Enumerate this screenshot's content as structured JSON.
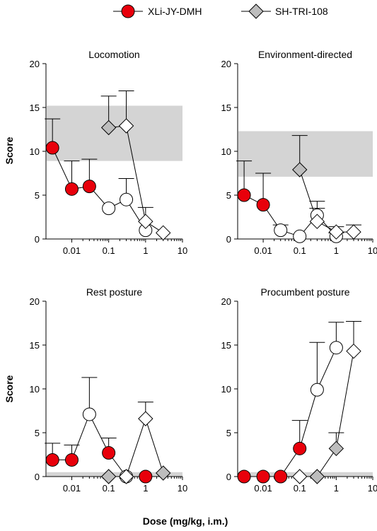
{
  "legend": {
    "entries": [
      {
        "label": "XLi-JY-DMH",
        "marker": "circle",
        "fill": "#e8000b"
      },
      {
        "label": "SH-TRI-108",
        "marker": "diamond",
        "fill": "#bdbdbd"
      }
    ]
  },
  "ylabel": "Score",
  "xlabel": "Dose (mg/kg, i.m.)",
  "colors": {
    "red_fill": "#e8000b",
    "gray_fill": "#bdbdbd",
    "open_fill": "#ffffff",
    "band": "#d4d4d4"
  },
  "chart_data": [
    {
      "type": "scatter",
      "title": "Locomotion",
      "xscale": "log",
      "xlim": [
        0.002,
        10
      ],
      "ylim": [
        0,
        20
      ],
      "xticks": [
        0.01,
        0.1,
        1,
        10
      ],
      "yticks": [
        0,
        5,
        10,
        15,
        20
      ],
      "band": [
        8.9,
        15.2
      ],
      "series": [
        {
          "name": "XLi-JY-DMH",
          "marker": "circle",
          "points": [
            {
              "x": 0.003,
              "y": 10.4,
              "err": 3.3,
              "fill": "red"
            },
            {
              "x": 0.01,
              "y": 5.7,
              "err": 3.2,
              "fill": "red"
            },
            {
              "x": 0.03,
              "y": 6.0,
              "err": 3.1,
              "fill": "red"
            },
            {
              "x": 0.1,
              "y": 3.5,
              "err": 0,
              "fill": "open"
            },
            {
              "x": 0.3,
              "y": 4.5,
              "err": 2.4,
              "fill": "open"
            },
            {
              "x": 1,
              "y": 1.0,
              "err": 0,
              "fill": "open"
            }
          ]
        },
        {
          "name": "SH-TRI-108",
          "marker": "diamond",
          "points": [
            {
              "x": 0.1,
              "y": 12.7,
              "err": 3.6,
              "fill": "gray"
            },
            {
              "x": 0.3,
              "y": 12.9,
              "err": 4.0,
              "fill": "open"
            },
            {
              "x": 1,
              "y": 2.0,
              "err": 1.6,
              "fill": "open"
            },
            {
              "x": 3,
              "y": 0.7,
              "err": 0,
              "fill": "open"
            }
          ]
        }
      ]
    },
    {
      "type": "scatter",
      "title": "Environment-directed",
      "xscale": "log",
      "xlim": [
        0.002,
        10
      ],
      "ylim": [
        0,
        20
      ],
      "xticks": [
        0.01,
        0.1,
        1,
        10
      ],
      "yticks": [
        0,
        5,
        10,
        15,
        20
      ],
      "band": [
        7.1,
        12.3
      ],
      "series": [
        {
          "name": "XLi-JY-DMH",
          "marker": "circle",
          "points": [
            {
              "x": 0.003,
              "y": 5.0,
              "err": 3.9,
              "fill": "red"
            },
            {
              "x": 0.01,
              "y": 3.9,
              "err": 3.6,
              "fill": "red"
            },
            {
              "x": 0.03,
              "y": 1.0,
              "err": 0.6,
              "fill": "open"
            },
            {
              "x": 0.1,
              "y": 0.3,
              "err": 0,
              "fill": "open"
            },
            {
              "x": 0.3,
              "y": 2.7,
              "err": 1.6,
              "fill": "open"
            },
            {
              "x": 1,
              "y": 0.3,
              "err": 0.4,
              "fill": "open"
            }
          ]
        },
        {
          "name": "SH-TRI-108",
          "marker": "diamond",
          "points": [
            {
              "x": 0.1,
              "y": 7.9,
              "err": 3.9,
              "fill": "gray"
            },
            {
              "x": 0.3,
              "y": 2.0,
              "err": 1.5,
              "fill": "open"
            },
            {
              "x": 1,
              "y": 0.8,
              "err": 0.6,
              "fill": "open"
            },
            {
              "x": 3,
              "y": 0.8,
              "err": 0.8,
              "fill": "open"
            }
          ]
        }
      ]
    },
    {
      "type": "scatter",
      "title": "Rest posture",
      "xscale": "log",
      "xlim": [
        0.002,
        10
      ],
      "ylim": [
        0,
        20
      ],
      "xticks": [
        0.01,
        0.1,
        1,
        10
      ],
      "yticks": [
        0,
        5,
        10,
        15,
        20
      ],
      "band": [
        0,
        0.5
      ],
      "series": [
        {
          "name": "XLi-JY-DMH",
          "marker": "circle",
          "points": [
            {
              "x": 0.003,
              "y": 1.9,
              "err": 1.9,
              "fill": "red"
            },
            {
              "x": 0.01,
              "y": 1.9,
              "err": 1.7,
              "fill": "red"
            },
            {
              "x": 0.03,
              "y": 7.1,
              "err": 4.2,
              "fill": "open"
            },
            {
              "x": 0.1,
              "y": 2.7,
              "err": 1.7,
              "fill": "red"
            },
            {
              "x": 0.3,
              "y": 0.0,
              "err": 0,
              "fill": "open"
            },
            {
              "x": 1,
              "y": 0.0,
              "err": 0,
              "fill": "red"
            }
          ]
        },
        {
          "name": "SH-TRI-108",
          "marker": "diamond",
          "points": [
            {
              "x": 0.1,
              "y": 0.0,
              "err": 0,
              "fill": "gray"
            },
            {
              "x": 0.3,
              "y": 0.0,
              "err": 0,
              "fill": "open"
            },
            {
              "x": 1,
              "y": 6.6,
              "err": 1.9,
              "fill": "open"
            },
            {
              "x": 3,
              "y": 0.4,
              "err": 0,
              "fill": "gray"
            }
          ]
        }
      ]
    },
    {
      "type": "scatter",
      "title": "Procumbent posture",
      "xscale": "log",
      "xlim": [
        0.002,
        10
      ],
      "ylim": [
        0,
        20
      ],
      "xticks": [
        0.01,
        0.1,
        1,
        10
      ],
      "yticks": [
        0,
        5,
        10,
        15,
        20
      ],
      "band": [
        0,
        0.5
      ],
      "series": [
        {
          "name": "XLi-JY-DMH",
          "marker": "circle",
          "points": [
            {
              "x": 0.003,
              "y": 0.0,
              "err": 0,
              "fill": "red"
            },
            {
              "x": 0.01,
              "y": 0.0,
              "err": 0,
              "fill": "red"
            },
            {
              "x": 0.03,
              "y": 0.0,
              "err": 0,
              "fill": "red"
            },
            {
              "x": 0.1,
              "y": 3.2,
              "err": 3.2,
              "fill": "red"
            },
            {
              "x": 0.3,
              "y": 9.9,
              "err": 5.4,
              "fill": "open"
            },
            {
              "x": 1,
              "y": 14.7,
              "err": 2.9,
              "fill": "open"
            }
          ]
        },
        {
          "name": "SH-TRI-108",
          "marker": "diamond",
          "points": [
            {
              "x": 0.1,
              "y": 0.0,
              "err": 0,
              "fill": "open"
            },
            {
              "x": 0.3,
              "y": 0.0,
              "err": 0,
              "fill": "gray"
            },
            {
              "x": 1,
              "y": 3.2,
              "err": 1.8,
              "fill": "gray"
            },
            {
              "x": 3,
              "y": 14.3,
              "err": 3.4,
              "fill": "open"
            }
          ]
        }
      ]
    }
  ]
}
